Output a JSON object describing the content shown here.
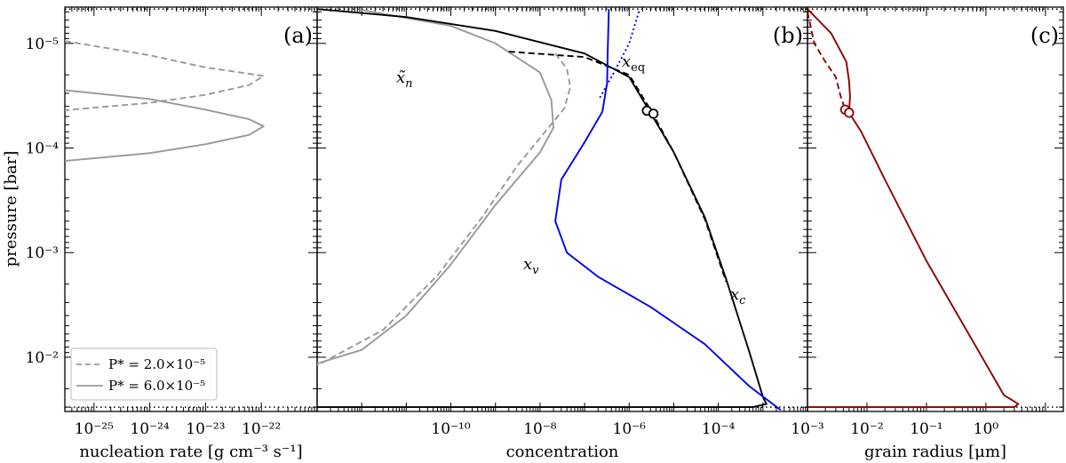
{
  "chart_data": [
    {
      "type": "line",
      "panel": "(a)",
      "xlabel": "nucleation rate [g cm⁻³ s⁻¹]",
      "ylabel": "pressure [bar]",
      "xscale": "log",
      "yscale": "log",
      "y_inverted": true,
      "xlim": [
        3e-26,
        1e-21
      ],
      "ylim": [
        4.5e-06,
        0.033
      ],
      "x_tick_labels": [
        "10⁻²⁵",
        "10⁻²⁴",
        "10⁻²³",
        "10⁻²²"
      ],
      "y_tick_labels": [
        "10⁻⁵",
        "10⁻⁴",
        "10⁻³",
        "10⁻²"
      ],
      "reference_lines": [
        {
          "y": 4.7e-06
        },
        {
          "y": 0.03
        }
      ],
      "legend": {
        "position": "lower-left",
        "entries": [
          "P* = 2.0×10⁻⁵",
          "P* = 6.0×10⁻⁵"
        ]
      },
      "series": [
        {
          "name": "P* = 2.0×10⁻⁵",
          "style": "dashed",
          "color": "#999999",
          "points": [
            [
              3e-26,
              9.5e-06
            ],
            [
              1e-24,
              1.3e-05
            ],
            [
              1e-23,
              1.7e-05
            ],
            [
              6e-23,
              1.95e-05
            ],
            [
              1.1e-22,
              2.05e-05
            ],
            [
              6e-23,
              2.5e-05
            ],
            [
              1e-23,
              3.1e-05
            ],
            [
              1e-24,
              3.7e-05
            ],
            [
              3e-26,
              4.35e-05
            ]
          ]
        },
        {
          "name": "P* = 6.0×10⁻⁵",
          "style": "solid",
          "color": "#999999",
          "points": [
            [
              3e-26,
              2.8e-05
            ],
            [
              1e-24,
              3.4e-05
            ],
            [
              1e-23,
              4.3e-05
            ],
            [
              6e-23,
              5.3e-05
            ],
            [
              1.1e-22,
              6.2e-05
            ],
            [
              6e-23,
              7.5e-05
            ],
            [
              1e-23,
              9.2e-05
            ],
            [
              1e-24,
              0.000112
            ],
            [
              3e-26,
              0.000133
            ]
          ]
        }
      ]
    },
    {
      "type": "line",
      "panel": "(b)",
      "xlabel": "concentration",
      "xscale": "log",
      "yscale": "log",
      "y_inverted": true,
      "xlim": [
        1e-13,
        0.01
      ],
      "ylim": [
        4.5e-06,
        0.033
      ],
      "x_tick_labels": [
        "10⁻¹⁰",
        "10⁻⁸",
        "10⁻⁶",
        "10⁻⁴"
      ],
      "annotations": [
        "x̃",
        "x",
        "x",
        "x"
      ],
      "annotation_subscripts": [
        "n",
        "v",
        "c",
        "eq"
      ],
      "markers": [
        [
          2.5e-06,
          4.4e-05
        ],
        [
          3.5e-06,
          4.7e-05
        ]
      ],
      "series": [
        {
          "style": "solid",
          "color": "#999999",
          "points": [
            [
              1e-12,
              4.8e-06
            ],
            [
              1e-10,
              6.8e-06
            ],
            [
              1e-09,
              1e-05
            ],
            [
              1e-08,
              1.9e-05
            ],
            [
              1.8e-08,
              3.5e-05
            ],
            [
              2e-08,
              6.4e-05
            ],
            [
              1e-08,
              0.00011
            ],
            [
              1e-09,
              0.00035
            ],
            [
              1e-10,
              0.0013
            ],
            [
              1e-11,
              0.004
            ],
            [
              1e-12,
              0.0085
            ],
            [
              1e-13,
              0.0115
            ]
          ]
        },
        {
          "style": "dashed",
          "color": "#999999",
          "points": [
            [
              2.2e-08,
              1.25e-05
            ],
            [
              4e-08,
              1.75e-05
            ],
            [
              4.8e-08,
              2.6e-05
            ],
            [
              3.5e-08,
              4.2e-05
            ],
            [
              1.5e-08,
              6.5e-05
            ],
            [
              3e-09,
              0.00015
            ],
            [
              5e-10,
              0.00046
            ],
            [
              5e-11,
              0.00165
            ],
            [
              3e-12,
              0.0055
            ],
            [
              1e-13,
              0.012
            ]
          ]
        },
        {
          "style": "solid",
          "color": "#000000",
          "points": [
            [
              1e-13,
              4.7e-06
            ],
            [
              1e-11,
              5.6e-06
            ],
            [
              1e-09,
              7.6e-06
            ],
            [
              1e-07,
              1.25e-05
            ],
            [
              1e-06,
              2.1e-05
            ],
            [
              3e-06,
              4.6e-05
            ],
            [
              1e-05,
              0.00011
            ],
            [
              5e-05,
              0.00046
            ],
            [
              0.00015,
              0.0018
            ],
            [
              0.0005,
              0.009
            ],
            [
              0.001,
              0.024
            ],
            [
              0.0012,
              0.028
            ],
            [
              0.0006,
              0.03
            ],
            [
              1e-05,
              0.03
            ],
            [
              1e-13,
              0.03
            ]
          ]
        },
        {
          "style": "dashed",
          "color": "#000000",
          "points": [
            [
              2e-09,
              1.2e-05
            ],
            [
              1e-07,
              1.35e-05
            ],
            [
              1e-06,
              2e-05
            ],
            [
              3e-06,
              4.3e-05
            ],
            [
              1e-05,
              0.00011
            ],
            [
              5e-05,
              0.00048
            ],
            [
              0.00015,
              0.0019
            ]
          ]
        },
        {
          "style": "solid",
          "color": "#0000ee",
          "points": [
            [
              3.5e-07,
              4.7e-06
            ],
            [
              3.3e-07,
              1.2e-05
            ],
            [
              3.2e-07,
              2.4e-05
            ],
            [
              2.5e-07,
              4.5e-05
            ],
            [
              1e-07,
              8.8e-05
            ],
            [
              3e-08,
              0.0002
            ],
            [
              2.2e-08,
              0.0005
            ],
            [
              4e-08,
              0.001
            ],
            [
              2e-07,
              0.0017
            ],
            [
              3e-06,
              0.0033
            ],
            [
              5e-05,
              0.0075
            ],
            [
              0.0005,
              0.019
            ],
            [
              0.0025,
              0.032
            ]
          ]
        },
        {
          "style": "dotted",
          "color": "#0000ee",
          "points": [
            [
              2.2e-07,
              3.3e-05
            ],
            [
              4e-07,
              2.1e-05
            ],
            [
              1e-06,
              1e-05
            ],
            [
              1.7e-06,
              4.8e-06
            ]
          ]
        }
      ]
    },
    {
      "type": "line",
      "panel": "(c)",
      "xlabel": "grain radius [μm]",
      "xscale": "log",
      "yscale": "log",
      "y_inverted": true,
      "xlim": [
        0.001,
        20
      ],
      "ylim": [
        4.5e-06,
        0.033
      ],
      "x_tick_labels": [
        "10⁻³",
        "10⁻²",
        "10⁻¹",
        "10⁰"
      ],
      "markers": [
        [
          0.0043,
          4.3e-05
        ],
        [
          0.005,
          4.6e-05
        ]
      ],
      "series": [
        {
          "style": "solid",
          "color": "#8b0000",
          "points": [
            [
              0.001,
              4.7e-06
            ],
            [
              0.0025,
              8e-06
            ],
            [
              0.0045,
              1.5e-05
            ],
            [
              0.005,
              2.3e-05
            ],
            [
              0.0052,
              3.2e-05
            ],
            [
              0.005,
              4.6e-05
            ],
            [
              0.008,
              7e-05
            ],
            [
              0.02,
              0.0002
            ],
            [
              0.1,
              0.0012
            ],
            [
              0.6,
              0.007
            ],
            [
              2,
              0.023
            ],
            [
              3.5,
              0.028
            ],
            [
              3,
              0.03
            ],
            [
              0.001,
              0.03
            ]
          ]
        },
        {
          "style": "dashed",
          "color": "#8b0000",
          "points": [
            [
              0.001,
              5e-06
            ],
            [
              0.0013,
              1e-05
            ],
            [
              0.002,
              1.5e-05
            ],
            [
              0.003,
              2.1e-05
            ],
            [
              0.0036,
              3.2e-05
            ],
            [
              0.0043,
              4.3e-05
            ],
            [
              0.0055,
              5.2e-05
            ]
          ]
        }
      ]
    }
  ]
}
